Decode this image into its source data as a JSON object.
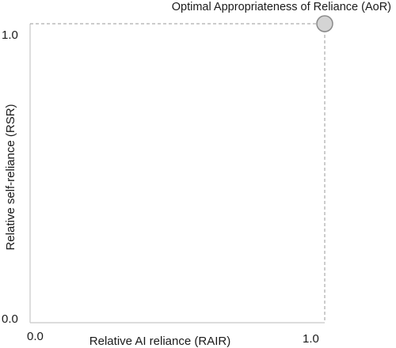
{
  "chart_data": {
    "type": "scatter",
    "xlabel": "Relative AI reliance (RAIR)",
    "ylabel": "Relative self-reliance (RSR)",
    "xlim": [
      0.0,
      1.0
    ],
    "ylim": [
      0.0,
      1.0
    ],
    "x_ticks": [
      "0.0",
      "1.0"
    ],
    "y_ticks": [
      "0.0",
      "1.0"
    ],
    "grid": false,
    "points": [
      {
        "x": 1.0,
        "y": 1.0,
        "label": "Optimal Appropriateness of Reliance (AoR)"
      }
    ],
    "colors": {
      "axis": "#c8c8c8",
      "guide": "#9a9a9a",
      "point_fill": "#d4d4d4",
      "point_stroke": "#8a8a8a",
      "text": "#1a1a1a"
    }
  }
}
